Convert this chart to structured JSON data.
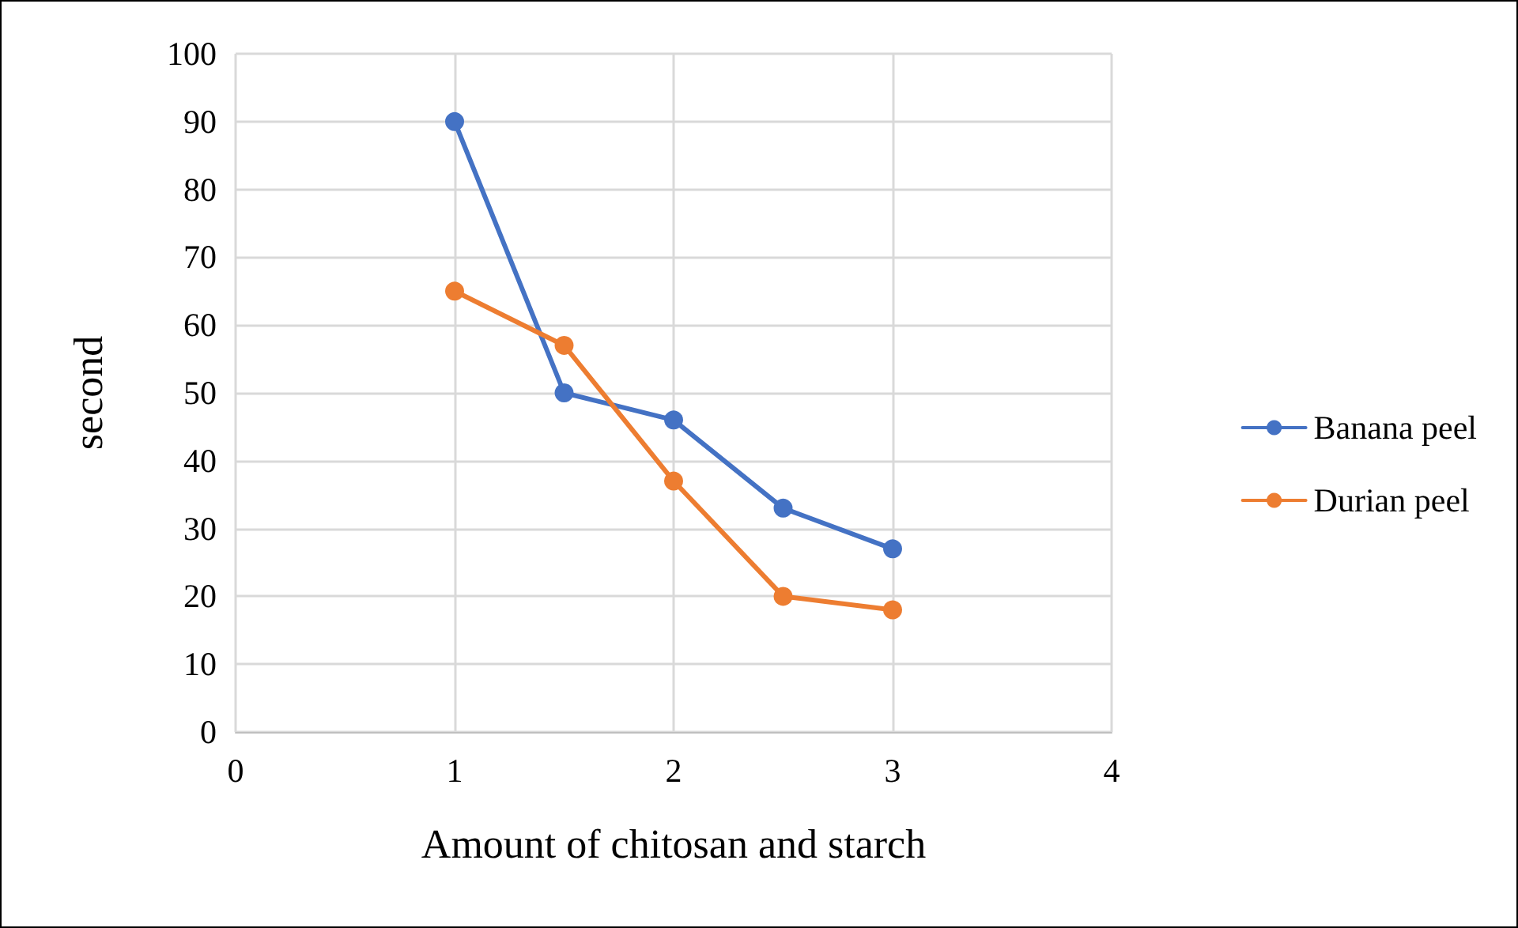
{
  "chart_data": {
    "type": "line",
    "xlabel": "Amount of chitosan and starch",
    "ylabel": "second",
    "series": [
      {
        "name": "Banana peel",
        "color": "#4472c4",
        "x": [
          1,
          1.5,
          2,
          2.5,
          3
        ],
        "values": [
          90,
          50,
          46,
          33,
          27
        ]
      },
      {
        "name": "Durian peel",
        "color": "#ed7d31",
        "x": [
          1,
          1.5,
          2,
          2.5,
          3
        ],
        "values": [
          65,
          57,
          37,
          20,
          18
        ]
      }
    ],
    "xlim": [
      0,
      4
    ],
    "xticks": [
      0,
      1,
      2,
      3,
      4
    ],
    "ylim": [
      0,
      100
    ],
    "yticks": [
      0,
      10,
      20,
      30,
      40,
      50,
      60,
      70,
      80,
      90,
      100
    ],
    "grid": true,
    "legend": "right",
    "marker": "circle",
    "line_style": "solid"
  }
}
